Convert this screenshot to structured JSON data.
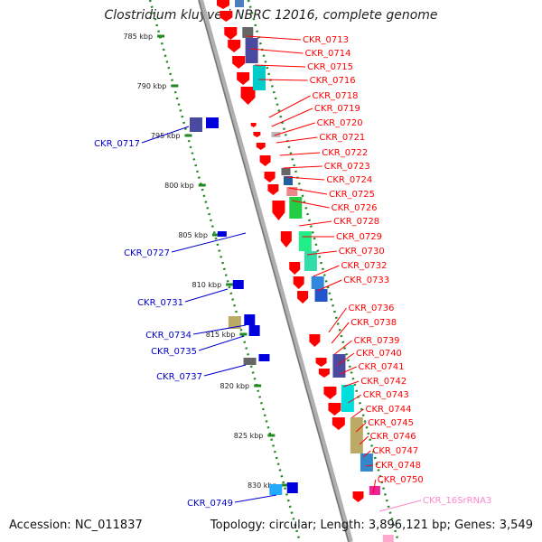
{
  "title": "Clostridium kluyveri NBRC 12016, complete genome",
  "accession": "Accession: NC_011837",
  "summary": "Topology: circular; Length: 3,896,121 bp; Genes: 3,549",
  "kbp_ticks": [
    "785 kbp",
    "790 kbp",
    "795 kbp",
    "800 kbp",
    "805 kbp",
    "810 kbp",
    "815 kbp",
    "820 kbp",
    "825 kbp",
    "830 kbp"
  ],
  "right_genes": [
    "CKR_0713",
    "CKR_0714",
    "CKR_0715",
    "CKR_0716",
    "CKR_0718",
    "CKR_0719",
    "CKR_0720",
    "CKR_0721",
    "CKR_0722",
    "CKR_0723",
    "CKR_0724",
    "CKR_0725",
    "CKR_0726",
    "CKR_0728",
    "CKR_0729",
    "CKR_0730",
    "CKR_0732",
    "CKR_0733",
    "CKR_0736",
    "CKR_0738",
    "CKR_0739",
    "CKR_0740",
    "CKR_0741",
    "CKR_0742",
    "CKR_0743",
    "CKR_0744",
    "CKR_0745",
    "CKR_0746",
    "CKR_0747",
    "CKR_0748",
    "CKR_0750"
  ],
  "rna_genes": [
    "CKR_16SrRNA3"
  ],
  "left_genes": [
    "CKR_0717",
    "CKR_0727",
    "CKR_0731",
    "CKR_0734",
    "CKR_0735",
    "CKR_0737",
    "CKR_0749"
  ],
  "colors": {
    "forward": "#ff0000",
    "reverse": "#0000cc",
    "rrna": "#ff88cc",
    "axis": "#888888",
    "dots": "#228822"
  }
}
